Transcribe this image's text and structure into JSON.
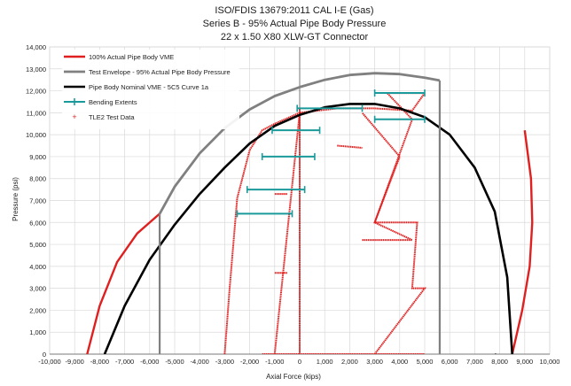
{
  "chart_data": {
    "type": "line",
    "title": [
      "ISO/FDIS 13679:2011 CAL I-E (Gas)",
      "Series B - 95% Actual Pipe Body Pressure",
      "22 x 1.50 X80 XLW-GT Connector"
    ],
    "xlabel": "Axial Force (kips)",
    "ylabel": "Pressure (psi)",
    "xlim": [
      -10000,
      10000
    ],
    "ylim": [
      0,
      14000
    ],
    "xticks": [
      "-10,000",
      "-9,000",
      "-8,000",
      "-7,000",
      "-6,000",
      "-5,000",
      "-4,000",
      "-3,000",
      "-2,000",
      "-1,000",
      "0",
      "1,000",
      "2,000",
      "3,000",
      "4,000",
      "5,000",
      "6,000",
      "7,000",
      "8,000",
      "9,000",
      "10,000"
    ],
    "yticks": [
      "0",
      "1,000",
      "2,000",
      "3,000",
      "4,000",
      "5,000",
      "6,000",
      "7,000",
      "8,000",
      "9,000",
      "10,000",
      "11,000",
      "12,000",
      "13,000",
      "14,000"
    ],
    "grid": true,
    "legend_position": "top-left",
    "series": [
      {
        "name": "100% Actual Pipe Body VME",
        "color": "#e02020",
        "x": [
          -8500,
          -8000,
          -7300,
          -6500,
          -5600,
          9000,
          9250,
          9300,
          9200,
          8900,
          8500
        ],
        "y": [
          0,
          2200,
          4200,
          5500,
          6400,
          10200,
          8000,
          6000,
          4000,
          2000,
          0
        ]
      },
      {
        "name": "Test Envelope - 95% Actual Pipe Body Pressure",
        "color": "#808080",
        "x": [
          -5600,
          -5000,
          -4000,
          -3000,
          -2000,
          -1000,
          0,
          1000,
          2000,
          3000,
          4000,
          5000,
          5600
        ],
        "y": [
          6400,
          7630,
          9150,
          10300,
          11150,
          11760,
          12170,
          12500,
          12720,
          12800,
          12760,
          12600,
          12470
        ]
      },
      {
        "name": "Pipe Body Nominal VME - 5C5 Curve 1a",
        "color": "#000000",
        "x": [
          -7800,
          -7000,
          -6000,
          -5000,
          -4000,
          -3000,
          -2000,
          -1000,
          0,
          1000,
          2000,
          3000,
          4000,
          5000,
          6000,
          7000,
          7800,
          8300,
          8500,
          8300,
          7800
        ],
        "y": [
          0,
          2200,
          4300,
          5900,
          7300,
          8500,
          9600,
          10400,
          10900,
          11250,
          11400,
          11400,
          11200,
          10800,
          10000,
          8500,
          6500,
          3500,
          0,
          -500,
          0
        ]
      }
    ],
    "envelope_verticals": [
      {
        "x": -5600,
        "y_top": 6400
      },
      {
        "x": 5600,
        "y_top": 12470
      }
    ],
    "bending_extents": {
      "name": "Bending Extents",
      "color": "#1a9a9a",
      "segments": [
        {
          "x1": -2500,
          "x2": -300,
          "y": 6400
        },
        {
          "x1": -2100,
          "x2": 200,
          "y": 7500
        },
        {
          "x1": -1500,
          "x2": 600,
          "y": 9000
        },
        {
          "x1": -1100,
          "x2": 800,
          "y": 10200
        },
        {
          "x1": -100,
          "x2": 2500,
          "y": 11200
        },
        {
          "x1": 3000,
          "x2": 5000,
          "y": 10700
        },
        {
          "x1": 3000,
          "x2": 5000,
          "y": 11900
        }
      ]
    },
    "test_data": {
      "name": "TLE2 Test Data",
      "color": "#e02020",
      "paths": [
        [
          [
            -3000,
            0
          ],
          [
            -2800,
            3000
          ],
          [
            -2500,
            7100
          ],
          [
            -2000,
            9300
          ],
          [
            -1500,
            10200
          ],
          [
            -1000,
            10500
          ],
          [
            0,
            11000
          ],
          [
            1500,
            11200
          ],
          [
            3000,
            11200
          ],
          [
            4500,
            11100
          ],
          [
            5000,
            11900
          ]
        ],
        [
          [
            -1500,
            0
          ],
          [
            5000,
            0
          ]
        ],
        [
          [
            0,
            0
          ],
          [
            0,
            11200
          ]
        ],
        [
          [
            -1000,
            0
          ],
          [
            0,
            11000
          ]
        ],
        [
          [
            2500,
            5200
          ],
          [
            4500,
            5200
          ],
          [
            3000,
            6000
          ],
          [
            4000,
            9000
          ],
          [
            2500,
            11000
          ]
        ],
        [
          [
            3000,
            0
          ],
          [
            5000,
            3000
          ],
          [
            4500,
            3000
          ],
          [
            4700,
            6000
          ],
          [
            3000,
            6000
          ],
          [
            4500,
            10700
          ],
          [
            3500,
            11900
          ],
          [
            5000,
            11900
          ]
        ],
        [
          [
            -1000,
            7300
          ],
          [
            -500,
            7300
          ]
        ],
        [
          [
            -1000,
            3700
          ],
          [
            -500,
            3700
          ]
        ],
        [
          [
            1500,
            9500
          ],
          [
            2500,
            9400
          ]
        ]
      ]
    }
  }
}
